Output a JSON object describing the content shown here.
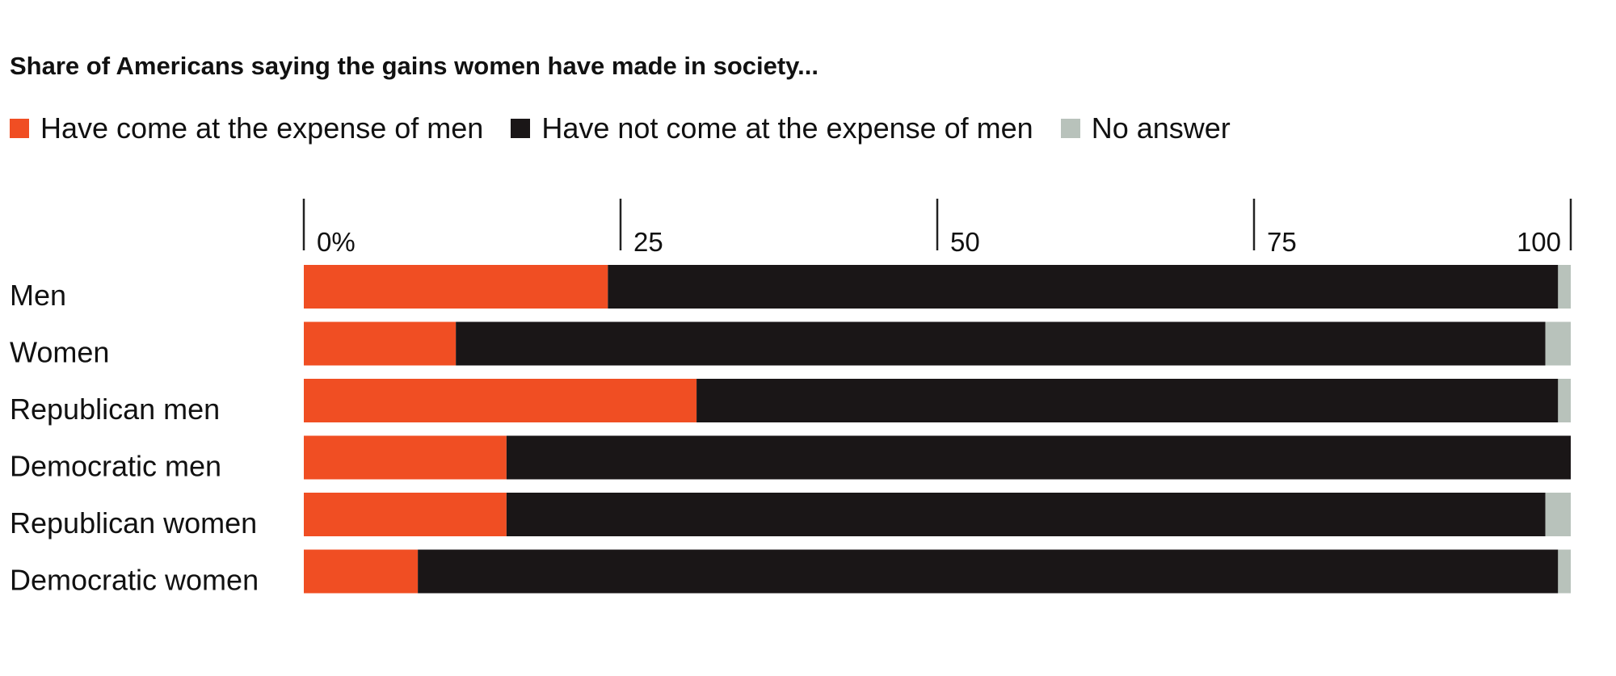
{
  "chart_data": {
    "type": "bar",
    "orientation": "horizontal",
    "stacked": true,
    "title": "Share of Americans saying the gains women have made in society...",
    "categories": [
      "Men",
      "Women",
      "Republican men",
      "Democratic men",
      "Republican women",
      "Democratic women"
    ],
    "series": [
      {
        "name": "Have come at the expense of men",
        "color": "#f04e23",
        "values": [
          24,
          12,
          31,
          16,
          16,
          9
        ]
      },
      {
        "name": "Have not come at the expense of men",
        "color": "#1a1617",
        "values": [
          75,
          86,
          68,
          84,
          82,
          90
        ]
      },
      {
        "name": "No answer",
        "color": "#b8c2bb",
        "values": [
          1,
          2,
          1,
          0,
          2,
          1
        ]
      }
    ],
    "x_ticks": [
      "0%",
      "25",
      "50",
      "75",
      "100"
    ],
    "x_tick_values": [
      0,
      25,
      50,
      75,
      100
    ],
    "xlim": [
      0,
      100
    ],
    "legend_position": "top-left",
    "grid": false
  }
}
